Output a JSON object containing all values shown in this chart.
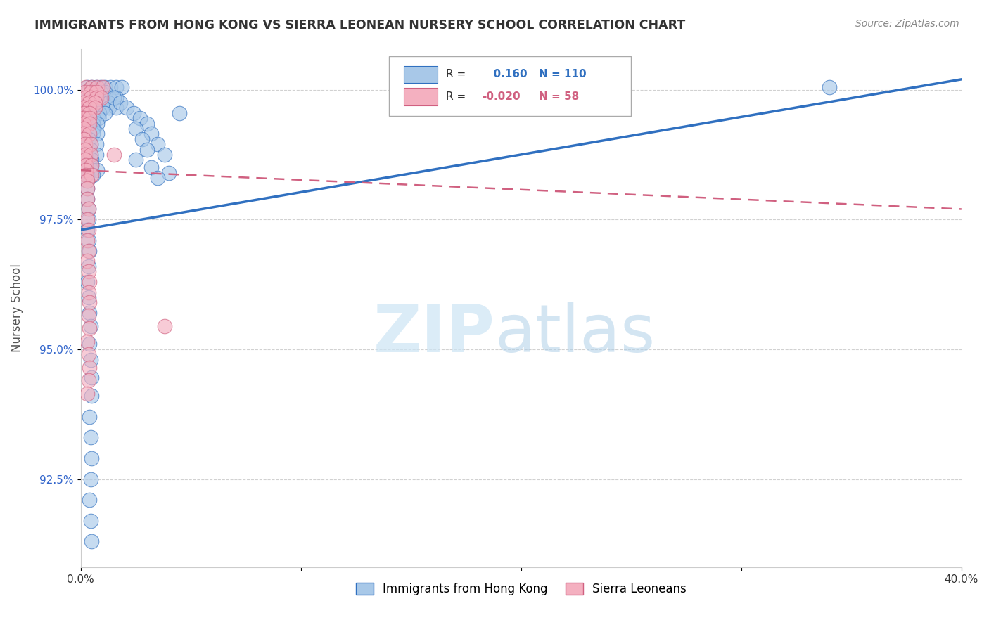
{
  "title": "IMMIGRANTS FROM HONG KONG VS SIERRA LEONEAN NURSERY SCHOOL CORRELATION CHART",
  "source": "Source: ZipAtlas.com",
  "ylabel": "Nursery School",
  "yticks": [
    "100.0%",
    "97.5%",
    "95.0%",
    "92.5%"
  ],
  "ytick_vals": [
    1.0,
    0.975,
    0.95,
    0.925
  ],
  "xrange": [
    0.0,
    40.0
  ],
  "yrange": [
    0.908,
    1.008
  ],
  "r_blue": 0.16,
  "n_blue": 110,
  "r_pink": -0.02,
  "n_pink": 58,
  "legend_label_blue": "Immigrants from Hong Kong",
  "legend_label_pink": "Sierra Leoneans",
  "blue_color": "#a8c8e8",
  "pink_color": "#f4b0c0",
  "blue_line_color": "#3070c0",
  "pink_line_color": "#d06080",
  "background_color": "#ffffff",
  "blue_trend_x": [
    0,
    40
  ],
  "blue_trend_y": [
    0.973,
    1.002
  ],
  "pink_trend_x": [
    0,
    40
  ],
  "pink_trend_y": [
    0.9845,
    0.977
  ],
  "blue_dots": [
    [
      0.3,
      1.0005
    ],
    [
      0.5,
      1.0005
    ],
    [
      0.7,
      1.0005
    ],
    [
      0.9,
      1.0005
    ],
    [
      1.1,
      1.0005
    ],
    [
      1.35,
      1.0005
    ],
    [
      1.6,
      1.0005
    ],
    [
      1.85,
      1.0005
    ],
    [
      0.3,
      0.9995
    ],
    [
      0.5,
      0.9995
    ],
    [
      0.7,
      0.9995
    ],
    [
      0.9,
      0.9995
    ],
    [
      1.1,
      0.9995
    ],
    [
      0.2,
      0.9985
    ],
    [
      0.4,
      0.9985
    ],
    [
      0.6,
      0.9985
    ],
    [
      0.8,
      0.9985
    ],
    [
      1.05,
      0.9985
    ],
    [
      1.3,
      0.9985
    ],
    [
      1.6,
      0.9985
    ],
    [
      0.15,
      0.9975
    ],
    [
      0.35,
      0.9975
    ],
    [
      0.55,
      0.9975
    ],
    [
      0.75,
      0.9975
    ],
    [
      1.0,
      0.9975
    ],
    [
      1.25,
      0.9975
    ],
    [
      0.15,
      0.9965
    ],
    [
      0.35,
      0.9965
    ],
    [
      0.55,
      0.9965
    ],
    [
      0.75,
      0.9965
    ],
    [
      1.0,
      0.9965
    ],
    [
      1.3,
      0.9965
    ],
    [
      1.6,
      0.9965
    ],
    [
      0.15,
      0.9955
    ],
    [
      0.35,
      0.9955
    ],
    [
      0.6,
      0.9955
    ],
    [
      0.85,
      0.9955
    ],
    [
      1.1,
      0.9955
    ],
    [
      0.15,
      0.9945
    ],
    [
      0.35,
      0.9945
    ],
    [
      0.55,
      0.9945
    ],
    [
      0.8,
      0.9945
    ],
    [
      0.15,
      0.9935
    ],
    [
      0.35,
      0.9935
    ],
    [
      0.55,
      0.9935
    ],
    [
      0.75,
      0.9935
    ],
    [
      0.15,
      0.9925
    ],
    [
      0.35,
      0.9925
    ],
    [
      0.55,
      0.9925
    ],
    [
      0.15,
      0.9915
    ],
    [
      0.35,
      0.9915
    ],
    [
      0.55,
      0.9915
    ],
    [
      0.75,
      0.9915
    ],
    [
      0.15,
      0.9905
    ],
    [
      0.35,
      0.9905
    ],
    [
      0.2,
      0.9895
    ],
    [
      0.45,
      0.9895
    ],
    [
      0.7,
      0.9895
    ],
    [
      0.2,
      0.9885
    ],
    [
      0.45,
      0.9885
    ],
    [
      0.2,
      0.9875
    ],
    [
      0.45,
      0.9875
    ],
    [
      0.7,
      0.9875
    ],
    [
      0.25,
      0.9865
    ],
    [
      0.5,
      0.9865
    ],
    [
      0.25,
      0.9855
    ],
    [
      0.5,
      0.9855
    ],
    [
      0.25,
      0.9845
    ],
    [
      0.5,
      0.9845
    ],
    [
      0.75,
      0.9845
    ],
    [
      0.3,
      0.9835
    ],
    [
      0.55,
      0.9835
    ],
    [
      0.3,
      0.9825
    ],
    [
      0.3,
      0.981
    ],
    [
      0.3,
      0.979
    ],
    [
      0.35,
      0.977
    ],
    [
      0.35,
      0.975
    ],
    [
      0.3,
      0.973
    ],
    [
      0.35,
      0.971
    ],
    [
      0.4,
      0.969
    ],
    [
      0.35,
      0.966
    ],
    [
      0.3,
      0.963
    ],
    [
      0.35,
      0.96
    ],
    [
      0.4,
      0.957
    ],
    [
      0.45,
      0.9545
    ],
    [
      0.4,
      0.951
    ],
    [
      0.45,
      0.948
    ],
    [
      0.5,
      0.9445
    ],
    [
      0.5,
      0.941
    ],
    [
      0.4,
      0.937
    ],
    [
      0.45,
      0.933
    ],
    [
      0.5,
      0.929
    ],
    [
      0.45,
      0.925
    ],
    [
      0.4,
      0.921
    ],
    [
      0.45,
      0.917
    ],
    [
      0.5,
      0.913
    ],
    [
      1.5,
      0.9985
    ],
    [
      1.8,
      0.9975
    ],
    [
      2.1,
      0.9965
    ],
    [
      2.4,
      0.9955
    ],
    [
      2.7,
      0.9945
    ],
    [
      3.0,
      0.9935
    ],
    [
      2.5,
      0.9925
    ],
    [
      3.2,
      0.9915
    ],
    [
      2.8,
      0.9905
    ],
    [
      3.5,
      0.9895
    ],
    [
      3.0,
      0.9885
    ],
    [
      3.8,
      0.9875
    ],
    [
      2.5,
      0.9865
    ],
    [
      3.2,
      0.985
    ],
    [
      4.0,
      0.984
    ],
    [
      3.5,
      0.983
    ],
    [
      4.5,
      0.9955
    ],
    [
      34.0,
      1.0005
    ]
  ],
  "pink_dots": [
    [
      0.25,
      1.0005
    ],
    [
      0.5,
      1.0005
    ],
    [
      0.75,
      1.0005
    ],
    [
      1.0,
      1.0005
    ],
    [
      0.2,
      0.9995
    ],
    [
      0.45,
      0.9995
    ],
    [
      0.7,
      0.9995
    ],
    [
      0.2,
      0.9985
    ],
    [
      0.45,
      0.9985
    ],
    [
      0.7,
      0.9985
    ],
    [
      0.95,
      0.9985
    ],
    [
      0.15,
      0.9975
    ],
    [
      0.4,
      0.9975
    ],
    [
      0.65,
      0.9975
    ],
    [
      0.15,
      0.9965
    ],
    [
      0.4,
      0.9965
    ],
    [
      0.65,
      0.9965
    ],
    [
      0.15,
      0.9955
    ],
    [
      0.4,
      0.9955
    ],
    [
      0.15,
      0.9945
    ],
    [
      0.4,
      0.9945
    ],
    [
      0.15,
      0.9935
    ],
    [
      0.4,
      0.9935
    ],
    [
      0.15,
      0.9925
    ],
    [
      0.15,
      0.9915
    ],
    [
      0.4,
      0.9915
    ],
    [
      0.15,
      0.9905
    ],
    [
      0.2,
      0.9895
    ],
    [
      0.45,
      0.9895
    ],
    [
      0.2,
      0.9885
    ],
    [
      0.2,
      0.9875
    ],
    [
      0.45,
      0.9875
    ],
    [
      0.2,
      0.9865
    ],
    [
      0.25,
      0.9855
    ],
    [
      0.5,
      0.9855
    ],
    [
      0.25,
      0.9845
    ],
    [
      0.25,
      0.9835
    ],
    [
      0.5,
      0.9835
    ],
    [
      0.3,
      0.9825
    ],
    [
      0.3,
      0.981
    ],
    [
      0.3,
      0.979
    ],
    [
      0.35,
      0.977
    ],
    [
      0.3,
      0.975
    ],
    [
      0.35,
      0.973
    ],
    [
      0.3,
      0.971
    ],
    [
      0.35,
      0.969
    ],
    [
      0.3,
      0.967
    ],
    [
      0.35,
      0.965
    ],
    [
      0.4,
      0.963
    ],
    [
      0.35,
      0.961
    ],
    [
      0.4,
      0.959
    ],
    [
      0.35,
      0.9565
    ],
    [
      0.4,
      0.954
    ],
    [
      0.3,
      0.9515
    ],
    [
      0.35,
      0.949
    ],
    [
      0.4,
      0.9465
    ],
    [
      0.35,
      0.944
    ],
    [
      0.3,
      0.9415
    ],
    [
      1.5,
      0.9875
    ],
    [
      3.8,
      0.9545
    ]
  ]
}
